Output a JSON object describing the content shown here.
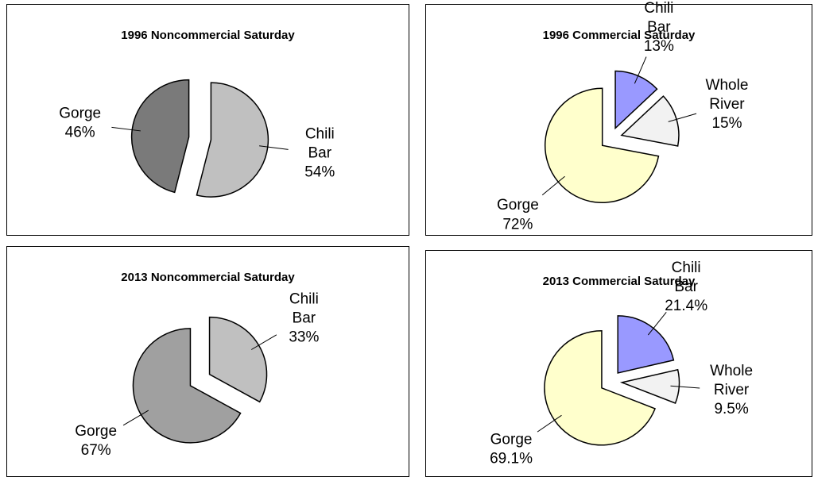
{
  "chart_data": [
    {
      "type": "pie",
      "title": "1996 Noncommercial Saturday",
      "categories": [
        "Chili Bar",
        "Gorge"
      ],
      "values": [
        54,
        46
      ],
      "value_labels": [
        "54%",
        "46%"
      ],
      "colors": [
        "#c0c0c0",
        "#7a7a7a"
      ]
    },
    {
      "type": "pie",
      "title": "1996 Commercial Saturday",
      "categories": [
        "Chili Bar",
        "Whole River",
        "Gorge"
      ],
      "values": [
        13,
        15,
        72
      ],
      "value_labels": [
        "13%",
        "15%",
        "72%"
      ],
      "colors": [
        "#9999ff",
        "#f2f2f2",
        "#ffffcc"
      ]
    },
    {
      "type": "pie",
      "title": "2013 Noncommercial Saturday",
      "categories": [
        "Chili Bar",
        "Gorge"
      ],
      "values": [
        33,
        67
      ],
      "value_labels": [
        "33%",
        "67%"
      ],
      "colors": [
        "#c0c0c0",
        "#a0a0a0"
      ]
    },
    {
      "type": "pie",
      "title": "2013 Commercial Saturday",
      "categories": [
        "Chili Bar",
        "Whole River",
        "Gorge"
      ],
      "values": [
        21.4,
        9.5,
        69.1
      ],
      "value_labels": [
        "21.4%",
        "9.5%",
        "69.1%"
      ],
      "colors": [
        "#9999ff",
        "#f2f2f2",
        "#ffffcc"
      ]
    }
  ]
}
